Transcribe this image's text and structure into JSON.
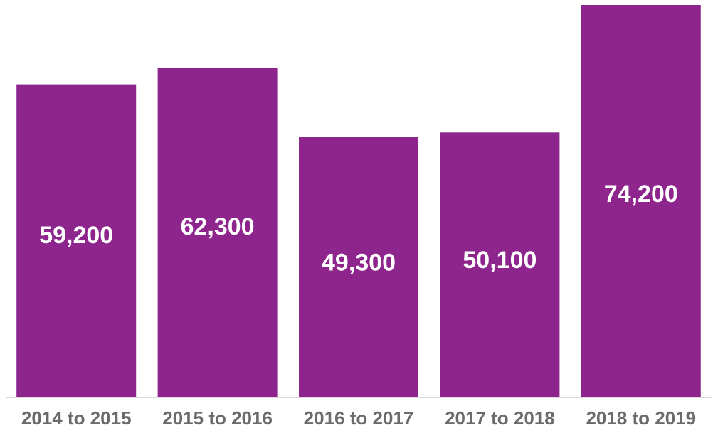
{
  "chart_data": {
    "type": "bar",
    "categories": [
      "2014 to 2015",
      "2015 to 2016",
      "2016 to 2017",
      "2017 to 2018",
      "2018 to 2019"
    ],
    "values": [
      59200,
      62300,
      49300,
      50100,
      74200
    ],
    "value_labels": [
      "59,200",
      "62,300",
      "49,300",
      "50,100",
      "74,200"
    ],
    "title": "",
    "xlabel": "",
    "ylabel": "",
    "ylim": [
      0,
      74200
    ],
    "grid": false,
    "legend": "none",
    "bar_color": "#8e258d",
    "axis_color": "#d9d9d9",
    "tick_label_color": "#6b6b6b"
  }
}
